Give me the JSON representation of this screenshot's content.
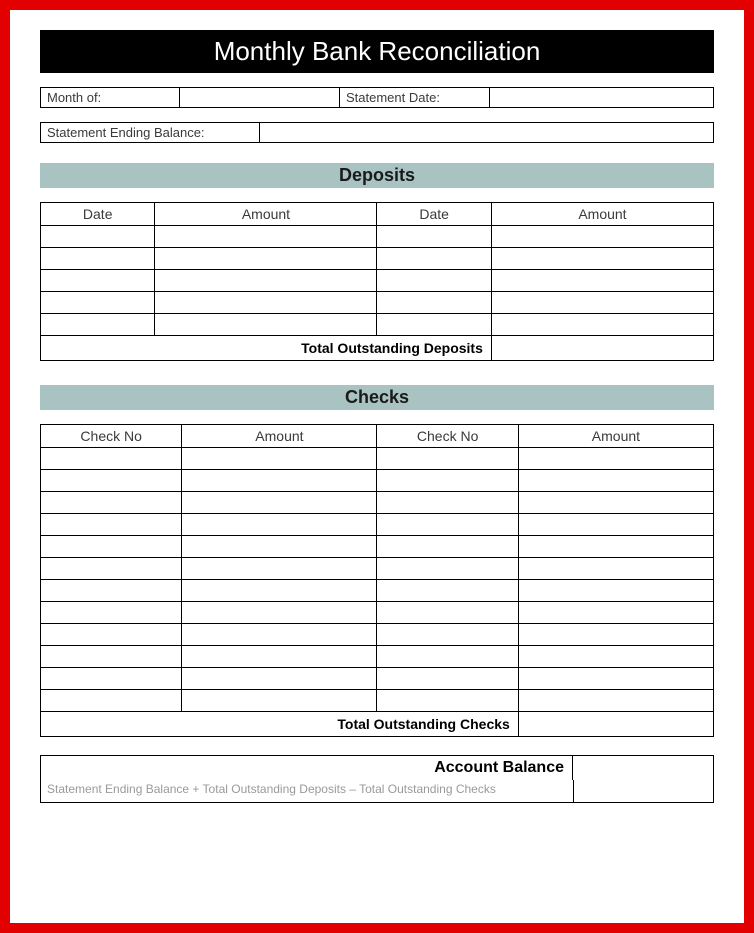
{
  "title": "Monthly Bank Reconciliation",
  "header": {
    "month_label": "Month of:",
    "month_value": "",
    "statement_date_label": "Statement Date:",
    "statement_date_value": ""
  },
  "ending_balance": {
    "label": "Statement Ending Balance:",
    "value": ""
  },
  "deposits": {
    "section_title": "Deposits",
    "columns": [
      "Date",
      "Amount",
      "Date",
      "Amount"
    ],
    "rows": [
      [
        "",
        "",
        "",
        ""
      ],
      [
        "",
        "",
        "",
        ""
      ],
      [
        "",
        "",
        "",
        ""
      ],
      [
        "",
        "",
        "",
        ""
      ],
      [
        "",
        "",
        "",
        ""
      ]
    ],
    "total_label": "Total Outstanding Deposits",
    "total_value": ""
  },
  "checks": {
    "section_title": "Checks",
    "columns": [
      "Check No",
      "Amount",
      "Check No",
      "Amount"
    ],
    "rows": [
      [
        "",
        "",
        "",
        ""
      ],
      [
        "",
        "",
        "",
        ""
      ],
      [
        "",
        "",
        "",
        ""
      ],
      [
        "",
        "",
        "",
        ""
      ],
      [
        "",
        "",
        "",
        ""
      ],
      [
        "",
        "",
        "",
        ""
      ],
      [
        "",
        "",
        "",
        ""
      ],
      [
        "",
        "",
        "",
        ""
      ],
      [
        "",
        "",
        "",
        ""
      ],
      [
        "",
        "",
        "",
        ""
      ],
      [
        "",
        "",
        "",
        ""
      ],
      [
        "",
        "",
        "",
        ""
      ]
    ],
    "total_label": "Total Outstanding Checks",
    "total_value": ""
  },
  "account_balance": {
    "label": "Account Balance",
    "formula": "Statement Ending Balance + Total Outstanding Deposits – Total Outstanding Checks",
    "value": ""
  },
  "colors": {
    "border": "#e20000",
    "title_bg": "#000000",
    "title_fg": "#ffffff",
    "section_bg": "#a8c3c1",
    "text": "#3a3a3a",
    "formula_text": "#9a9a9a"
  }
}
